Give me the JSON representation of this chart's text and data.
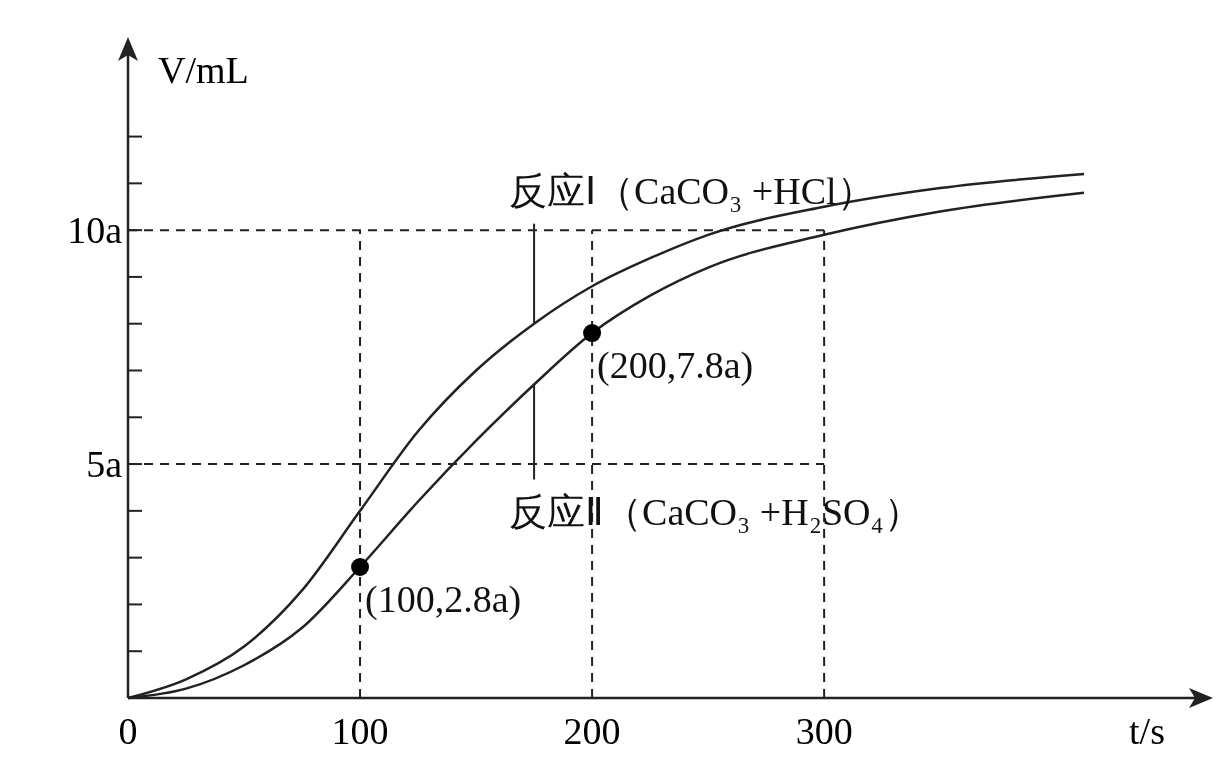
{
  "chart_data": {
    "type": "line",
    "xlabel": "t/s",
    "ylabel": "V/mL",
    "xlim": [
      0,
      465
    ],
    "ylim": [
      0,
      14
    ],
    "xticks": [
      0,
      100,
      200,
      300
    ],
    "yticks": [
      {
        "value": 1,
        "label": null
      },
      {
        "value": 2,
        "label": null
      },
      {
        "value": 3,
        "label": null
      },
      {
        "value": 4,
        "label": null
      },
      {
        "value": 5,
        "label": "5a"
      },
      {
        "value": 6,
        "label": null
      },
      {
        "value": 7,
        "label": null
      },
      {
        "value": 8,
        "label": null
      },
      {
        "value": 9,
        "label": null
      },
      {
        "value": 10,
        "label": "10a"
      },
      {
        "value": 11,
        "label": null
      },
      {
        "value": 12,
        "label": null
      }
    ],
    "grid": false,
    "line_style": "solid",
    "series": [
      {
        "color": "#222222",
        "x": [
          0,
          25,
          50,
          75,
          100,
          125,
          150,
          175,
          200,
          225,
          250,
          300,
          350,
          412
        ],
        "values": [
          0,
          0.4,
          1.1,
          2.3,
          4.0,
          5.7,
          7.0,
          8.0,
          8.8,
          9.4,
          9.9,
          10.5,
          10.9,
          11.2
        ]
      },
      {
        "color": "#222222",
        "x": [
          0,
          25,
          50,
          75,
          100,
          125,
          150,
          175,
          200,
          225,
          250,
          300,
          350,
          412
        ],
        "values": [
          0,
          0.2,
          0.7,
          1.5,
          2.8,
          4.2,
          5.5,
          6.7,
          7.8,
          8.6,
          9.2,
          9.9,
          10.4,
          10.8
        ]
      },
      {
        "type": "scatter",
        "marker": "circle",
        "color": "#000000",
        "x": [
          100,
          200
        ],
        "values": [
          2.8,
          7.8
        ]
      }
    ],
    "ref_lines": [
      {
        "axis": "y",
        "value": 10,
        "line_style": "dashed"
      },
      {
        "axis": "y",
        "value": 5,
        "line_style": "dashed"
      },
      {
        "axis": "x",
        "value": 100,
        "line_style": "dashed"
      },
      {
        "axis": "x",
        "value": 200,
        "line_style": "dashed"
      },
      {
        "axis": "x",
        "value": 300,
        "line_style": "dashed"
      }
    ],
    "annotations": [
      {
        "text": "反应Ⅰ（CaCO₃ +HCl）",
        "x": 175,
        "y": 8.0
      },
      {
        "text": "反应Ⅱ（CaCO₃ +H₂SO₄）",
        "x": 175,
        "y": 6.7
      },
      {
        "text": "(200,7.8a)",
        "x": 200,
        "y": 7.8
      },
      {
        "text": "(100,2.8a)",
        "x": 100,
        "y": 2.8
      }
    ]
  }
}
